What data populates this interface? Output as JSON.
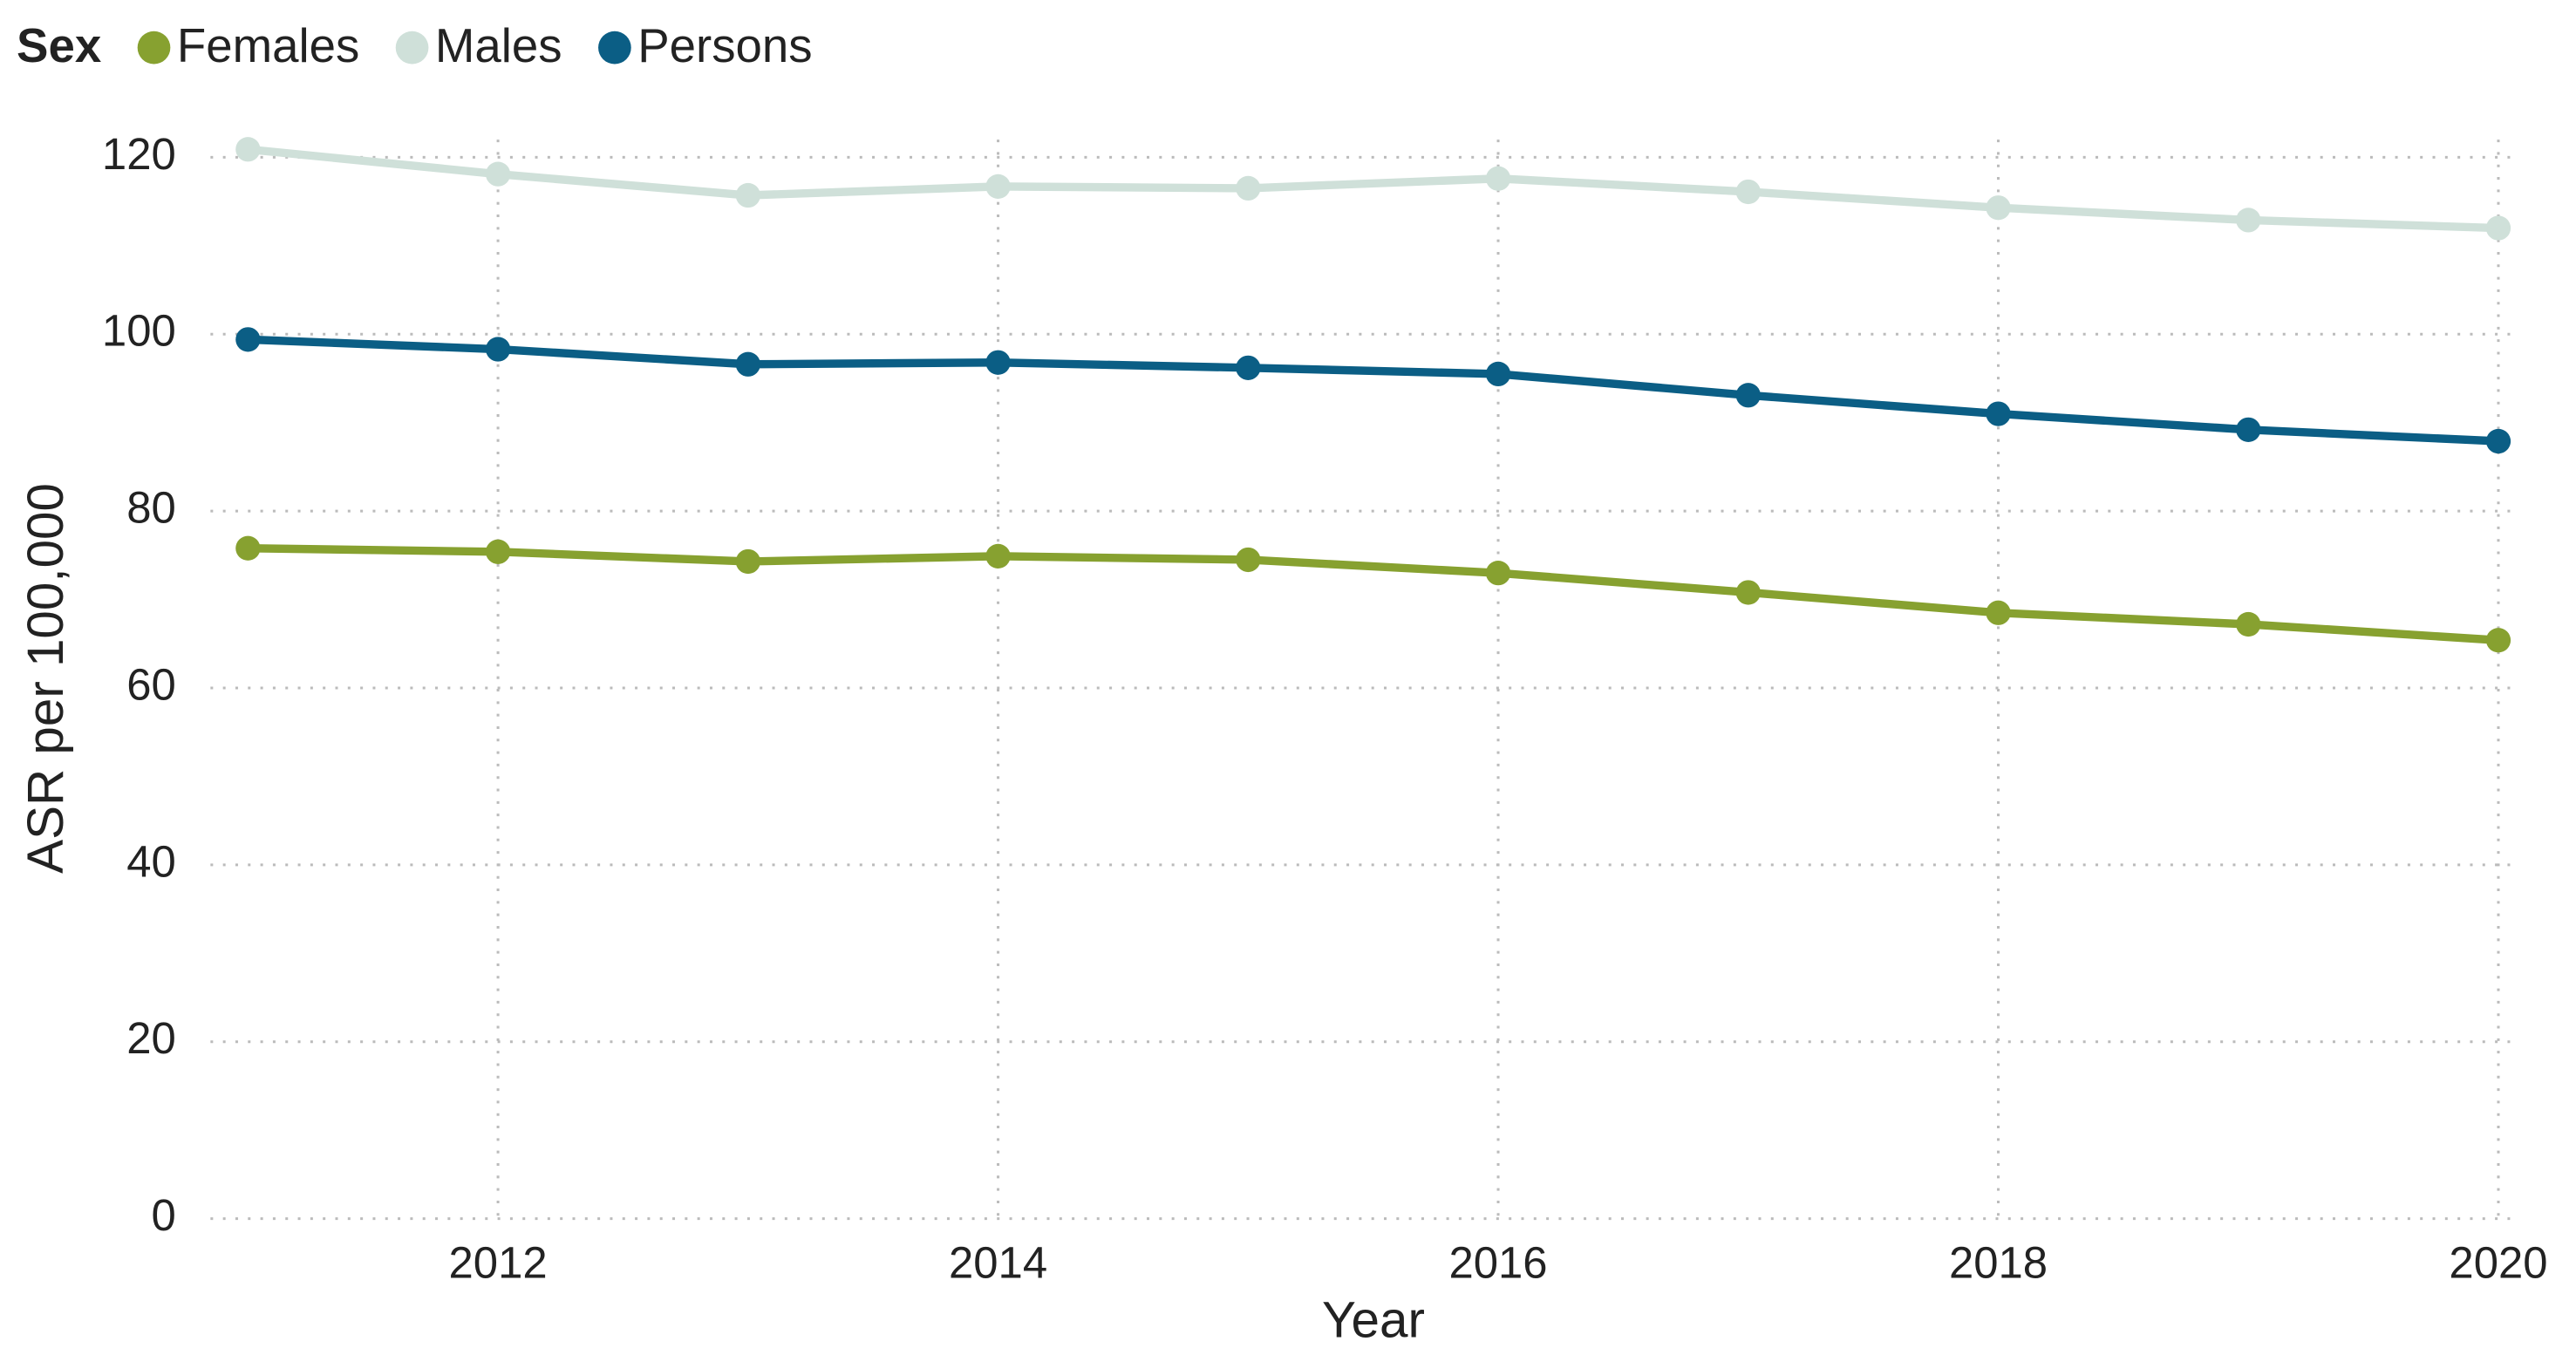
{
  "chart_data": {
    "type": "line",
    "legend_title": "Sex",
    "x_label": "Year",
    "y_label": "ASR per 100,000",
    "x": [
      2011,
      2012,
      2013,
      2014,
      2015,
      2016,
      2017,
      2018,
      2019,
      2020
    ],
    "series": [
      {
        "name": "Females",
        "color": "#87a130",
        "values": [
          75.8,
          75.4,
          74.3,
          74.9,
          74.5,
          73.0,
          70.8,
          68.5,
          67.2,
          65.4
        ]
      },
      {
        "name": "Males",
        "color": "#cfe0d9",
        "values": [
          120.9,
          118.1,
          115.7,
          116.7,
          116.5,
          117.6,
          116.1,
          114.3,
          112.9,
          112.0
        ]
      },
      {
        "name": "Persons",
        "color": "#0b5e85",
        "values": [
          99.4,
          98.3,
          96.6,
          96.8,
          96.2,
          95.5,
          93.1,
          91.0,
          89.2,
          87.9
        ]
      }
    ],
    "xlim": [
      2010.85,
      2020.06
    ],
    "xticks": [
      2012,
      2014,
      2016,
      2018,
      2020
    ],
    "ylim": [
      0,
      122
    ],
    "yticks": [
      0,
      20,
      40,
      60,
      80,
      100,
      120
    ],
    "grid": true,
    "legend": "top-left"
  }
}
